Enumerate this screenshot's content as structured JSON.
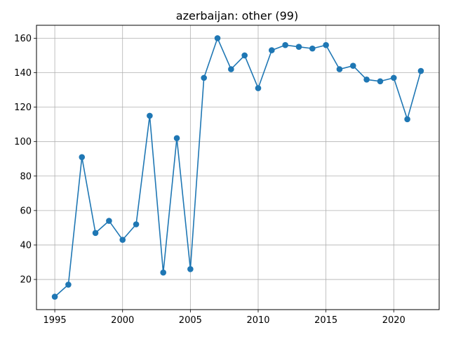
{
  "chart_data": {
    "type": "line",
    "title": "azerbaijan: other (99)",
    "xlabel": "",
    "ylabel": "",
    "x": [
      1995,
      1996,
      1997,
      1998,
      1999,
      2000,
      2001,
      2002,
      2003,
      2004,
      2005,
      2006,
      2007,
      2008,
      2009,
      2010,
      2011,
      2012,
      2013,
      2014,
      2015,
      2016,
      2017,
      2018,
      2019,
      2020,
      2021,
      2022
    ],
    "y": [
      10,
      17,
      91,
      47,
      54,
      43,
      52,
      115,
      24,
      102,
      26,
      137,
      160,
      142,
      150,
      131,
      153,
      156,
      155,
      154,
      156,
      142,
      144,
      136,
      135,
      137,
      113,
      141
    ],
    "xticks": [
      1995,
      2000,
      2005,
      2010,
      2015,
      2020
    ],
    "yticks": [
      20,
      40,
      60,
      80,
      100,
      120,
      140,
      160
    ],
    "xlim": [
      1993.65,
      2023.35
    ],
    "ylim": [
      2.5,
      167.5
    ],
    "grid": true,
    "legend": "none",
    "color": "#1f77b4",
    "marker": "circle"
  }
}
